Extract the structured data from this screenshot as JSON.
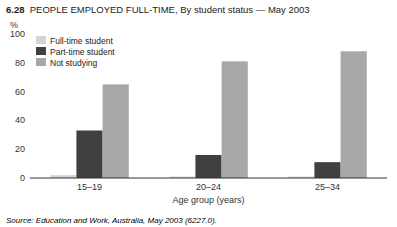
{
  "chart_data": {
    "type": "bar",
    "title": "6.28",
    "subtitle": "  PEOPLE EMPLOYED FULL-TIME, By student status — May 2003",
    "categories": [
      "15–19",
      "20–24",
      "25–34"
    ],
    "series": [
      {
        "name": "Full-time student",
        "color": "#d4d4d4",
        "values": [
          2,
          1,
          1
        ]
      },
      {
        "name": "Part-time student",
        "color": "#404040",
        "values": [
          33,
          16,
          11
        ]
      },
      {
        "name": "Not studying",
        "color": "#a8a8a8",
        "values": [
          65,
          81,
          88
        ]
      }
    ],
    "y_label": "%",
    "x_label": "Age group (years)",
    "annotations": [
      "Source: Education and Work, Australia, May 2003 (6227.0)."
    ],
    "ylim": [
      0,
      100
    ],
    "yticks": [
      0,
      20,
      40,
      60,
      80,
      100
    ],
    "grid": false,
    "legend": "upper left"
  }
}
